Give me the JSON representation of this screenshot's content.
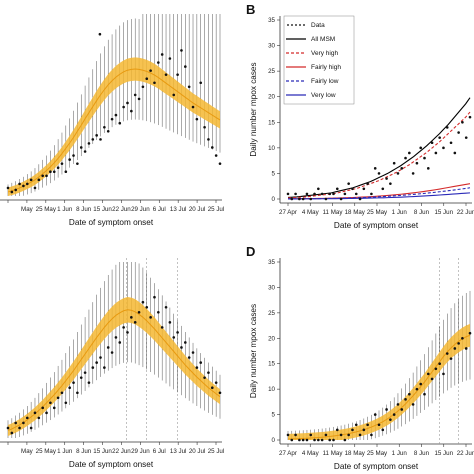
{
  "chart_data": [
    {
      "panel": "A",
      "type": "scatter",
      "panel_label": "",
      "xlabel": "Date of symptom onset",
      "ylabel": "",
      "x_ticks": [
        "",
        "May",
        "25 May",
        "1 Jun",
        "8 Jun",
        "15 Jun",
        "22 Jun",
        "29 Jun",
        "6 Jul",
        "13 Jul",
        "20 Jul",
        "25 Jul"
      ],
      "y_ticks": [],
      "observed": [
        2,
        1,
        1.5,
        3,
        2.5,
        3,
        4,
        2,
        4,
        5,
        5,
        6,
        6,
        7,
        8,
        6,
        9,
        10,
        8,
        12,
        11,
        13,
        14,
        15,
        14,
        17,
        16,
        19,
        20,
        18,
        22,
        23,
        21,
        25,
        24,
        27,
        29,
        31,
        28,
        33,
        35,
        30,
        34,
        25,
        30,
        36,
        32,
        27,
        22,
        19,
        28,
        17,
        14,
        12,
        10,
        8
      ],
      "fit": [
        1,
        1.3,
        1.6,
        2,
        2.4,
        2.9,
        3.4,
        4,
        4.7,
        5.5,
        6.3,
        7.2,
        8.2,
        9.3,
        10.5,
        11.8,
        13.1,
        14.5,
        16,
        17.5,
        19.1,
        20.6,
        22.1,
        23.6,
        25,
        26.3,
        27.5,
        28.5,
        29.4,
        30.1,
        30.7,
        31.1,
        31.3,
        31.4,
        31.3,
        31.1,
        30.8,
        30.4,
        29.9,
        29.3,
        28.6,
        27.9,
        27.2,
        26.5,
        25.8,
        25.1,
        24.4,
        23.7,
        23,
        22.4,
        21.8,
        21.2,
        20.6,
        20,
        19.4,
        18.8
      ],
      "outlier": 40
    },
    {
      "panel": "B",
      "type": "line",
      "panel_label": "B",
      "xlabel": "Date of symptom onset",
      "ylabel": "Daily number mpox cases",
      "x_ticks": [
        "27 Apr",
        "4 May",
        "11 May",
        "18 May",
        "25 May",
        "1 Jun",
        "8 Jun",
        "15 Jun",
        "22 Jun"
      ],
      "ylim": [
        0,
        35
      ],
      "y_ticks": [
        "0",
        "5",
        "10",
        "15",
        "20",
        "25",
        "30",
        "35"
      ],
      "legend": [
        {
          "label": "Data",
          "color": "#000000",
          "style": "dots"
        },
        {
          "label": "All MSM",
          "color": "#000000",
          "style": "solid"
        },
        {
          "label": "Very high",
          "color": "#d42a2a",
          "style": "dashed"
        },
        {
          "label": "Fairly high",
          "color": "#d42a2a",
          "style": "solid"
        },
        {
          "label": "Fairly low",
          "color": "#2a2ab8",
          "style": "dashed"
        },
        {
          "label": "Very low",
          "color": "#2a2ab8",
          "style": "solid"
        }
      ],
      "observed": [
        1,
        0,
        1,
        0,
        0,
        1,
        0,
        1,
        2,
        1,
        0,
        1,
        1,
        2,
        0,
        1,
        3,
        2,
        1,
        0,
        2,
        3,
        1,
        6,
        5,
        2,
        4,
        3,
        7,
        5,
        6,
        8,
        9,
        5,
        7,
        10,
        8,
        6,
        11,
        9,
        12,
        10,
        14,
        11,
        9,
        13,
        15,
        12,
        16
      ],
      "all_msm": [
        0.3,
        0.35,
        0.4,
        0.5,
        0.6,
        0.7,
        0.8,
        0.9,
        1,
        1.1,
        1.2,
        1.4,
        1.6,
        1.8,
        2,
        2.2,
        2.5,
        2.8,
        3.1,
        3.4,
        3.8,
        4.2,
        4.6,
        5,
        5.5,
        6,
        6.5,
        7.1,
        7.7,
        8.3,
        9,
        9.7,
        10.4,
        11.2,
        12,
        12.8,
        13.7,
        14.6,
        15.6,
        16.6,
        17.6,
        18.6,
        19.8
      ],
      "very_high": [
        0.2,
        0.25,
        0.3,
        0.35,
        0.4,
        0.5,
        0.6,
        0.7,
        0.8,
        0.9,
        1,
        1.1,
        1.3,
        1.5,
        1.7,
        1.9,
        2.1,
        2.4,
        2.7,
        3,
        3.3,
        3.6,
        4,
        4.4,
        4.8,
        5.2,
        5.7,
        6.2,
        6.7,
        7.3,
        7.9,
        8.5,
        9.1,
        9.8,
        10.5,
        11.2,
        12,
        12.8,
        13.6,
        14.4,
        15.2,
        16,
        17
      ],
      "fairly_high": [
        0.05,
        0.05,
        0.06,
        0.07,
        0.08,
        0.09,
        0.1,
        0.11,
        0.12,
        0.14,
        0.16,
        0.18,
        0.2,
        0.23,
        0.26,
        0.29,
        0.33,
        0.37,
        0.41,
        0.46,
        0.51,
        0.57,
        0.63,
        0.7,
        0.77,
        0.85,
        0.93,
        1.02,
        1.11,
        1.21,
        1.32,
        1.43,
        1.55,
        1.68,
        1.81,
        1.95,
        2.1,
        2.25,
        2.4,
        2.55,
        2.7,
        2.85,
        3
      ],
      "fairly_low": [
        0.03,
        0.03,
        0.04,
        0.04,
        0.05,
        0.06,
        0.07,
        0.08,
        0.09,
        0.1,
        0.11,
        0.13,
        0.15,
        0.17,
        0.19,
        0.22,
        0.25,
        0.28,
        0.31,
        0.35,
        0.39,
        0.43,
        0.48,
        0.53,
        0.58,
        0.64,
        0.7,
        0.76,
        0.83,
        0.9,
        0.98,
        1.06,
        1.14,
        1.23,
        1.32,
        1.42,
        1.52,
        1.62,
        1.73,
        1.84,
        1.95,
        2.06,
        2.2
      ],
      "very_low": [
        0.02,
        0.02,
        0.02,
        0.03,
        0.03,
        0.03,
        0.04,
        0.04,
        0.05,
        0.05,
        0.06,
        0.07,
        0.08,
        0.09,
        0.1,
        0.11,
        0.12,
        0.14,
        0.16,
        0.18,
        0.2,
        0.22,
        0.24,
        0.27,
        0.3,
        0.33,
        0.36,
        0.4,
        0.44,
        0.48,
        0.52,
        0.57,
        0.62,
        0.67,
        0.72,
        0.78,
        0.84,
        0.9,
        0.96,
        1.02,
        1.08,
        1.14,
        1.2
      ]
    },
    {
      "panel": "C",
      "type": "scatter",
      "panel_label": "",
      "xlabel": "Date of symptom onset",
      "ylabel": "",
      "x_ticks": [
        "",
        "May",
        "25 May",
        "1 Jun",
        "8 Jun",
        "15 Jun",
        "22 Jun",
        "29 Jun",
        "6 Jul",
        "13 Jul",
        "20 Jul",
        "25 Jul"
      ],
      "y_ticks": [],
      "observed": [
        2,
        1,
        3,
        2,
        3,
        4,
        2,
        5,
        4,
        6,
        5,
        7,
        6,
        8,
        9,
        7,
        10,
        11,
        9,
        12,
        13,
        11,
        14,
        15,
        16,
        14,
        18,
        17,
        20,
        19,
        22,
        21,
        24,
        23,
        25,
        27,
        26,
        24,
        28,
        25,
        22,
        26,
        23,
        20,
        21,
        18,
        19,
        16,
        17,
        14,
        15,
        12,
        13,
        10,
        11,
        9
      ],
      "fit": [
        1.5,
        1.8,
        2.2,
        2.6,
        3.1,
        3.6,
        4.2,
        4.8,
        5.5,
        6.2,
        7,
        7.8,
        8.6,
        9.5,
        10.4,
        11.4,
        12.4,
        13.4,
        14.5,
        15.6,
        16.7,
        17.8,
        18.9,
        20,
        21,
        22,
        22.9,
        23.7,
        24.4,
        24.9,
        25.3,
        25.5,
        25.4,
        25.1,
        24.6,
        24,
        23.3,
        22.5,
        21.7,
        20.8,
        19.9,
        19,
        18.1,
        17.2,
        16.3,
        15.4,
        14.5,
        13.7,
        12.9,
        12.1,
        11.4,
        10.7,
        10,
        9.4,
        8.8,
        8.2
      ]
    },
    {
      "panel": "D",
      "type": "scatter",
      "panel_label": "D",
      "xlabel": "Date of symptom onset",
      "ylabel": "Daily number mpox cases",
      "x_ticks": [
        "27 Apr",
        "4 May",
        "11 May",
        "18 May",
        "25 May",
        "1 Jun",
        "8 Jun",
        "15 Jun",
        "22 Jun"
      ],
      "ylim": [
        0,
        35
      ],
      "y_ticks": [
        "0",
        "5",
        "10",
        "15",
        "20",
        "25",
        "30",
        "35"
      ],
      "observed": [
        1,
        0,
        1,
        0,
        0,
        0,
        1,
        0,
        0,
        0,
        1,
        0,
        0,
        2,
        1,
        0,
        1,
        2,
        3,
        1,
        2,
        3,
        1,
        5,
        3,
        2,
        6,
        4,
        5,
        7,
        6,
        8,
        9,
        7,
        10,
        11,
        9,
        13,
        12,
        14,
        15,
        13,
        17,
        16,
        18,
        19,
        20,
        18,
        21
      ],
      "fit": [
        0.2,
        0.22,
        0.25,
        0.28,
        0.31,
        0.35,
        0.39,
        0.44,
        0.49,
        0.55,
        0.62,
        0.7,
        0.79,
        0.89,
        1,
        1.12,
        1.26,
        1.42,
        1.6,
        1.8,
        2.02,
        2.27,
        2.55,
        2.86,
        3.2,
        3.6,
        4.05,
        4.55,
        5.1,
        5.7,
        6.4,
        7.1,
        7.9,
        8.7,
        9.6,
        10.5,
        11.4,
        12.4,
        13.4,
        14.4,
        15.4,
        16.4,
        17.3,
        18.1,
        18.8,
        19.4,
        19.9,
        20.3,
        20.6
      ]
    }
  ]
}
